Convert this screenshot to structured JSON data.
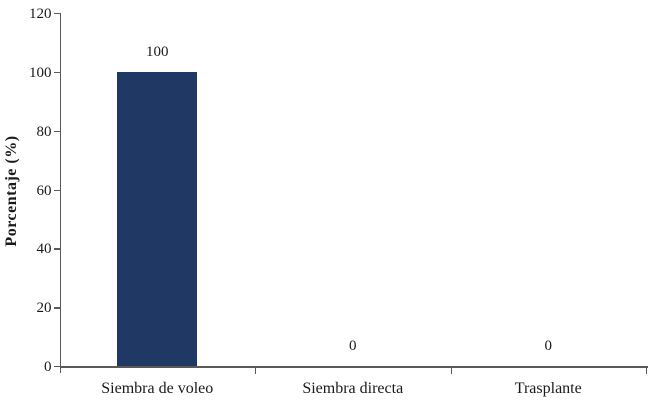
{
  "chart_data": {
    "type": "bar",
    "title": "",
    "xlabel": "",
    "ylabel": "Porcentaje (%)",
    "categories": [
      "Siembra de voleo",
      "Siembra directa",
      "Trasplante"
    ],
    "values": [
      100,
      0,
      0
    ],
    "data_labels": [
      "100",
      "0",
      "0"
    ],
    "yticks": [
      0,
      20,
      40,
      60,
      80,
      100,
      120
    ],
    "ylim": [
      0,
      120
    ],
    "grid": "off",
    "legend": "none",
    "bar_color": "#1f3864",
    "axis_color": "#5a5a5a",
    "text_color": "#1a1a1a"
  }
}
